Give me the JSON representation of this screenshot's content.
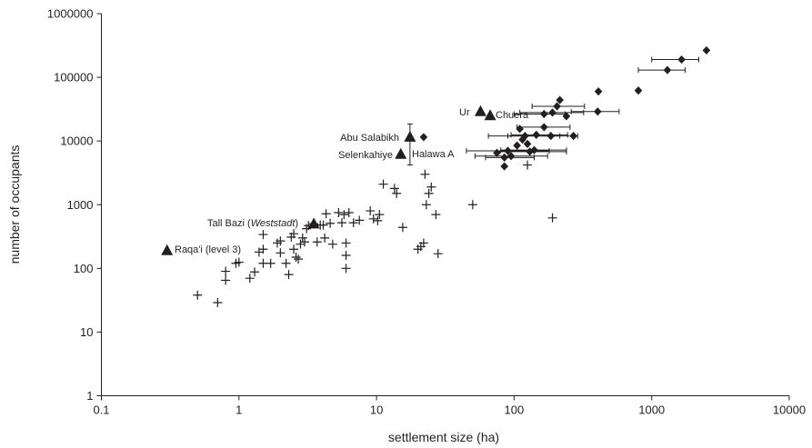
{
  "chart_data": {
    "type": "scatter",
    "xlabel": "settlement size (ha)",
    "ylabel": "number of occupants",
    "xscale": "log",
    "yscale": "log",
    "xlim": [
      0.1,
      10000
    ],
    "ylim": [
      1,
      1000000
    ],
    "grid": false,
    "legend": "none",
    "x_tick_labels": [
      "0.1",
      "1",
      "10",
      "100",
      "1000",
      "10000"
    ],
    "y_tick_labels": [
      "1",
      "10",
      "100",
      "1000",
      "10000",
      "100000",
      "1000000"
    ],
    "colors": {
      "marks": "#231f20",
      "axes": "#231f20"
    },
    "series": [
      {
        "marker": "cross",
        "points": [
          [
            0.5,
            38
          ],
          [
            0.7,
            29
          ],
          [
            0.8,
            65
          ],
          [
            0.8,
            90
          ],
          [
            0.95,
            120
          ],
          [
            1.0,
            125
          ],
          [
            1.2,
            70
          ],
          [
            1.3,
            88
          ],
          [
            1.4,
            180
          ],
          [
            1.5,
            200
          ],
          [
            1.5,
            120
          ],
          [
            1.5,
            340
          ],
          [
            1.7,
            120
          ],
          [
            1.9,
            250
          ],
          [
            2.0,
            270
          ],
          [
            2.0,
            175
          ],
          [
            2.2,
            120
          ],
          [
            2.3,
            80
          ],
          [
            2.4,
            310
          ],
          [
            2.5,
            200
          ],
          [
            2.5,
            350
          ],
          [
            2.6,
            150
          ],
          [
            2.7,
            140
          ],
          [
            2.8,
            240
          ],
          [
            2.9,
            300
          ],
          [
            3.0,
            260
          ],
          [
            3.1,
            420
          ],
          [
            3.2,
            470
          ],
          [
            3.5,
            500
          ],
          [
            3.7,
            260
          ],
          [
            3.9,
            480
          ],
          [
            4.1,
            480
          ],
          [
            4.2,
            300
          ],
          [
            4.3,
            720
          ],
          [
            4.6,
            510
          ],
          [
            4.8,
            240
          ],
          [
            5.3,
            750
          ],
          [
            5.6,
            520
          ],
          [
            5.8,
            700
          ],
          [
            6.0,
            100
          ],
          [
            6.0,
            160
          ],
          [
            6.0,
            250
          ],
          [
            6.3,
            750
          ],
          [
            6.8,
            520
          ],
          [
            7.5,
            570
          ],
          [
            9.0,
            800
          ],
          [
            9.5,
            600
          ],
          [
            10.2,
            560
          ],
          [
            10.5,
            700
          ],
          [
            11.2,
            2100
          ],
          [
            13.5,
            1800
          ],
          [
            14.0,
            1500
          ],
          [
            15.5,
            440
          ],
          [
            20.0,
            200
          ],
          [
            21.0,
            220
          ],
          [
            22.0,
            250
          ],
          [
            22.5,
            3000
          ],
          [
            23.0,
            1000
          ],
          [
            24.0,
            1500
          ],
          [
            25.0,
            1900
          ],
          [
            27.0,
            700
          ],
          [
            28.0,
            170
          ],
          [
            50.0,
            1000
          ],
          [
            125.0,
            4200
          ],
          [
            190.0,
            620
          ]
        ]
      },
      {
        "marker": "diamond",
        "points": [
          [
            22,
            11500
          ],
          [
            75,
            6500
          ],
          [
            85,
            5500
          ],
          [
            85,
            4000
          ],
          [
            90,
            7000
          ],
          [
            95,
            5800
          ],
          [
            105,
            8500
          ],
          [
            110,
            15500
          ],
          [
            115,
            10500
          ],
          [
            120,
            12000
          ],
          [
            125,
            9000
          ],
          [
            130,
            6800
          ],
          [
            140,
            7200
          ],
          [
            145,
            12500
          ],
          [
            165,
            16500
          ],
          [
            165,
            26500
          ],
          [
            185,
            12000
          ],
          [
            190,
            28000
          ],
          [
            205,
            35000
          ],
          [
            215,
            44000
          ],
          [
            240,
            24500
          ],
          [
            270,
            12000
          ],
          [
            405,
            29000
          ],
          [
            410,
            60000
          ],
          [
            800,
            62000
          ],
          [
            1300,
            130000
          ],
          [
            1650,
            190000
          ],
          [
            2500,
            265000
          ]
        ],
        "xerr_ranges": [
          [
            45,
            180
          ],
          [
            52,
            175
          ],
          [
            62,
            140
          ],
          [
            75,
            240
          ],
          [
            65,
            215
          ],
          [
            80,
            240
          ],
          [
            105,
            255
          ],
          [
            95,
            245
          ],
          [
            100,
            235
          ],
          [
            110,
            320
          ],
          [
            90,
            290
          ],
          [
            135,
            325
          ],
          [
            260,
            580
          ],
          [
            800,
            1750
          ],
          [
            1000,
            2200
          ]
        ]
      },
      {
        "marker": "triangle",
        "points": [
          [
            0.3,
            190
          ],
          [
            3.5,
            500
          ],
          [
            15.0,
            6200
          ],
          [
            17.5,
            11500
          ],
          [
            57.0,
            29000
          ],
          [
            67.0,
            25000
          ]
        ],
        "yerr_ranges": [
          [
            4200,
            18500
          ]
        ]
      }
    ],
    "annotations": [
      {
        "text": "Ur",
        "x": 56,
        "y": 29000
      },
      {
        "text": "Chuera",
        "x": 66,
        "y": 25000
      },
      {
        "text": "Abu Salabikh",
        "x": 17.5,
        "y": 11500
      },
      {
        "text": "Selenkahiye",
        "x": 15,
        "y": 6200
      },
      {
        "text": "Halawa A",
        "x": 15,
        "y": 6200
      },
      {
        "text": "Tall Bazi (",
        "x": 3.5,
        "y": 500
      },
      {
        "text": "Weststadt",
        "x": 3.5,
        "y": 500
      },
      {
        "text": ")",
        "x": 3.5,
        "y": 500
      },
      {
        "text": "Raqa'i (level 3)",
        "x": 0.3,
        "y": 190
      }
    ]
  }
}
